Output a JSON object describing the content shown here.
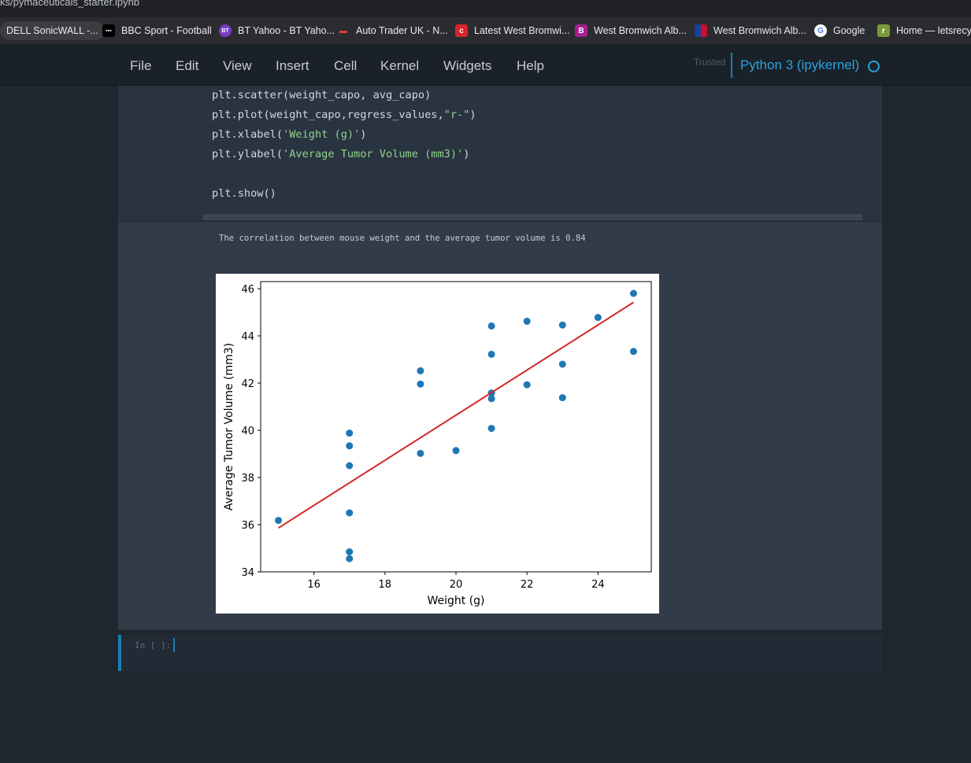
{
  "browser": {
    "url_fragment": "ks/pymaceuticals_starter.ipynb",
    "bookmarks": [
      {
        "label": "DELL SonicWALL -...",
        "icon": "sonicwall-icon",
        "color": "#3c3d41"
      },
      {
        "label": "BBC Sport - Football",
        "icon": "bbc-icon",
        "color": "#ffffff"
      },
      {
        "label": "BT Yahoo - BT Yaho...",
        "icon": "bt-icon",
        "color": "#7a3cc8"
      },
      {
        "label": "Auto Trader UK - N...",
        "icon": "autotrader-icon",
        "color": "#e03a3a"
      },
      {
        "label": "Latest West Bromwi...",
        "icon": "wba-news-icon",
        "color": "#d9242c"
      },
      {
        "label": "West Bromwich Alb...",
        "icon": "wba-b-icon",
        "color": "#a3208f"
      },
      {
        "label": "West Bromwich Alb...",
        "icon": "flag-icon",
        "color": "#1d3f9c"
      },
      {
        "label": "Google",
        "icon": "google-icon",
        "color": "#4285f4"
      },
      {
        "label": "Home — letsrecycl",
        "icon": "letsrecycle-icon",
        "color": "#7a9a3a"
      }
    ]
  },
  "menubar": {
    "items": [
      "File",
      "Edit",
      "View",
      "Insert",
      "Cell",
      "Kernel",
      "Widgets",
      "Help"
    ],
    "trusted": "Trusted",
    "kernel": "Python 3 (ipykernel)"
  },
  "code_cell": {
    "lines": [
      [
        {
          "t": "plt.scatter(weight_capo, avg_capo)"
        }
      ],
      [
        {
          "t": "plt.plot(weight_capo,regress_values,"
        },
        {
          "t": "\"r-\"",
          "s": true
        },
        {
          "t": ")"
        }
      ],
      [
        {
          "t": "plt.xlabel("
        },
        {
          "t": "'Weight (g)'",
          "s": true
        },
        {
          "t": ")"
        }
      ],
      [
        {
          "t": "plt.ylabel("
        },
        {
          "t": "'Average Tumor Volume (mm3)'",
          "s": true
        },
        {
          "t": ")"
        }
      ],
      [
        {
          "t": ""
        }
      ],
      [
        {
          "t": "plt.show()"
        }
      ]
    ]
  },
  "output": {
    "stdout": "The correlation between mouse weight and the average tumor volume is 0.84"
  },
  "empty_cell": {
    "prompt": "In [ ]:"
  },
  "chart_data": {
    "type": "scatter",
    "title": "",
    "xlabel": "Weight (g)",
    "ylabel": "Average Tumor Volume (mm3)",
    "xlim": [
      14.5,
      25.5
    ],
    "ylim": [
      34,
      46.3
    ],
    "xticks": [
      16,
      18,
      20,
      22,
      24
    ],
    "yticks": [
      34,
      36,
      38,
      40,
      42,
      44,
      46
    ],
    "grid": false,
    "point_color": "#1f77b4",
    "line_color": "#d62728",
    "points": [
      {
        "x": 15,
        "y": 36.18
      },
      {
        "x": 17,
        "y": 34.56
      },
      {
        "x": 17,
        "y": 34.85
      },
      {
        "x": 17,
        "y": 36.5
      },
      {
        "x": 17,
        "y": 38.5
      },
      {
        "x": 17,
        "y": 39.34
      },
      {
        "x": 17,
        "y": 39.88
      },
      {
        "x": 19,
        "y": 39.02
      },
      {
        "x": 19,
        "y": 41.96
      },
      {
        "x": 19,
        "y": 42.52
      },
      {
        "x": 20,
        "y": 39.14
      },
      {
        "x": 21,
        "y": 40.08
      },
      {
        "x": 21,
        "y": 41.34
      },
      {
        "x": 21,
        "y": 41.58
      },
      {
        "x": 21,
        "y": 43.22
      },
      {
        "x": 21,
        "y": 44.42
      },
      {
        "x": 22,
        "y": 41.93
      },
      {
        "x": 22,
        "y": 44.62
      },
      {
        "x": 23,
        "y": 41.38
      },
      {
        "x": 23,
        "y": 42.8
      },
      {
        "x": 23,
        "y": 44.46
      },
      {
        "x": 24,
        "y": 44.78
      },
      {
        "x": 25,
        "y": 43.34
      },
      {
        "x": 25,
        "y": 45.8
      }
    ],
    "regression": {
      "x": [
        15,
        25
      ],
      "y": [
        35.86,
        45.42
      ]
    }
  }
}
